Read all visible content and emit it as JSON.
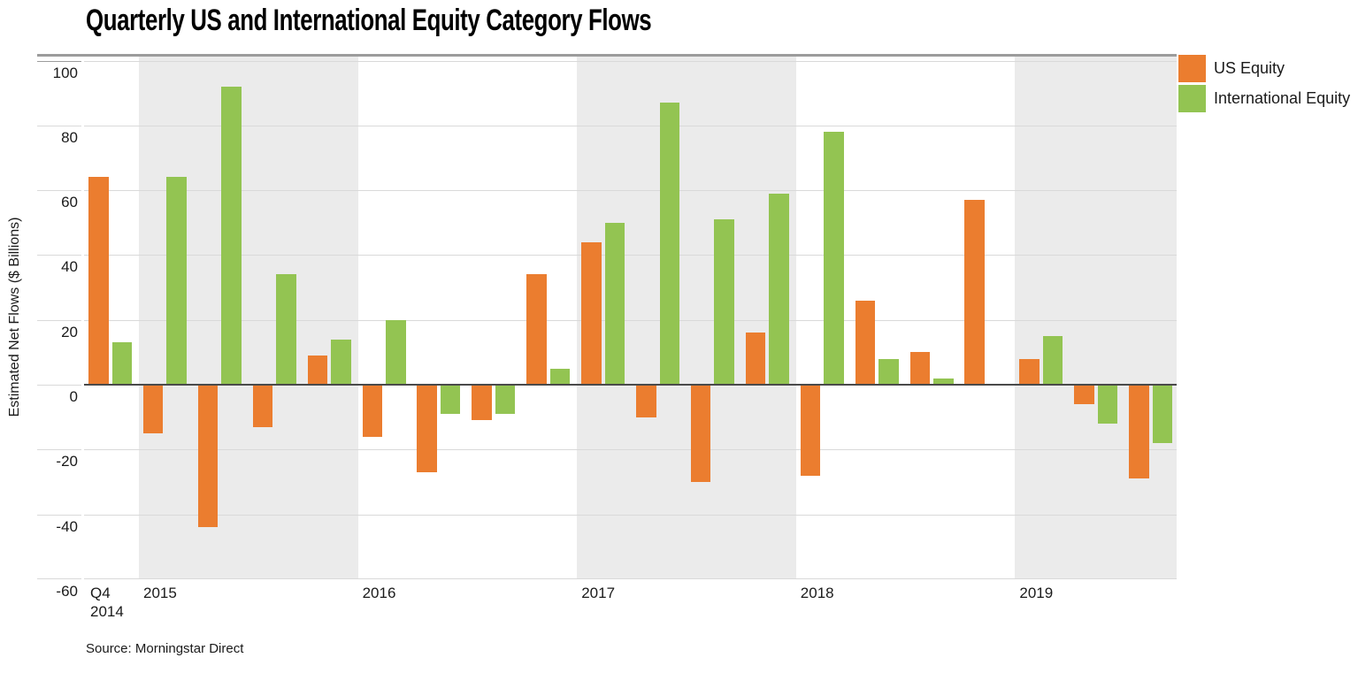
{
  "title": "Quarterly US and International Equity Category Flows",
  "source": "Source: Morningstar Direct",
  "legend": [
    {
      "label": "US Equity",
      "color": "#EB7D2F"
    },
    {
      "label": "International Equity",
      "color": "#93C452"
    }
  ],
  "colors": {
    "us_equity": "#EB7D2F",
    "international_equity": "#93C452",
    "year_band_shaded": "#EBEBEB",
    "gridline": "#D9D9D9",
    "zero_line": "#4A4A4A",
    "plot_top_border": "#9C9C9C"
  },
  "chart_data": {
    "type": "bar",
    "title": "Quarterly US and International Equity Category Flows",
    "xlabel": "",
    "ylabel": "Estimated Net Flows ($ Billions)",
    "ylim": [
      -62,
      102
    ],
    "yticks": [
      100,
      80,
      60,
      40,
      20,
      0,
      -20,
      -40,
      -60
    ],
    "grid": true,
    "legend_position": "top-right",
    "categories": [
      "Q4 2014",
      "Q1 2015",
      "Q2 2015",
      "Q3 2015",
      "Q4 2015",
      "Q1 2016",
      "Q2 2016",
      "Q3 2016",
      "Q4 2016",
      "Q1 2017",
      "Q2 2017",
      "Q3 2017",
      "Q4 2017",
      "Q1 2018",
      "Q2 2018",
      "Q3 2018",
      "Q4 2018",
      "Q1 2019",
      "Q2 2019",
      "Q3 2019"
    ],
    "series": [
      {
        "name": "US Equity",
        "color": "#EB7D2F",
        "values": [
          64,
          -15,
          -44,
          -13,
          9,
          -16,
          -27,
          -11,
          34,
          44,
          -10,
          -30,
          16,
          -28,
          26,
          10,
          57,
          8,
          -6,
          -29
        ]
      },
      {
        "name": "International Equity",
        "color": "#93C452",
        "values": [
          13,
          64,
          92,
          34,
          14,
          20,
          -9,
          -9,
          5,
          50,
          87,
          51,
          59,
          78,
          8,
          2,
          0,
          15,
          -12,
          -18
        ]
      }
    ],
    "x_groups": [
      {
        "label_lines": [
          "Q4",
          "2014"
        ],
        "quarters": 1,
        "shaded": false
      },
      {
        "label_lines": [
          "2015"
        ],
        "quarters": 4,
        "shaded": true
      },
      {
        "label_lines": [
          "2016"
        ],
        "quarters": 4,
        "shaded": false
      },
      {
        "label_lines": [
          "2017"
        ],
        "quarters": 4,
        "shaded": true
      },
      {
        "label_lines": [
          "2018"
        ],
        "quarters": 4,
        "shaded": false
      },
      {
        "label_lines": [
          "2019"
        ],
        "quarters": 3,
        "shaded": true
      }
    ]
  }
}
